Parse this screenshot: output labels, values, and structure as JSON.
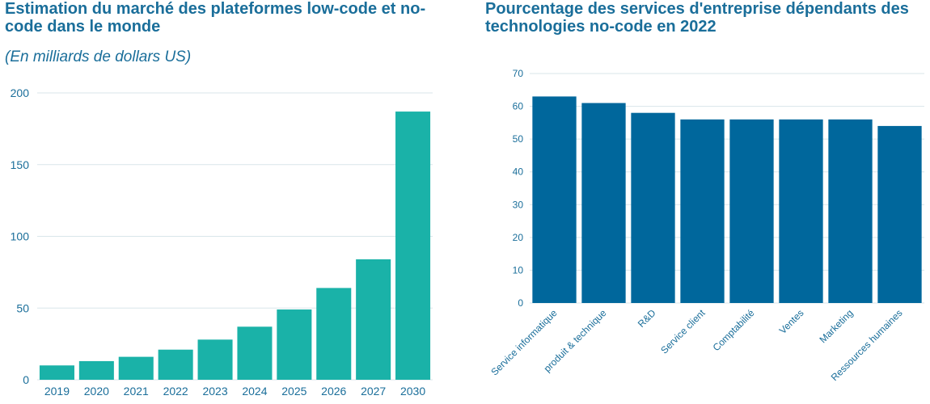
{
  "chart_data": [
    {
      "type": "bar",
      "title": "Estimation du marché des plateformes low-code et no-code dans le monde",
      "subtitle": "(En milliards de dollars US)",
      "xlabel": "",
      "ylabel": "",
      "ylim": [
        0,
        200
      ],
      "yticks": [
        "0",
        "50",
        "100",
        "150",
        "200"
      ],
      "grid": true,
      "categories": [
        "2019",
        "2020",
        "2021",
        "2022",
        "2023",
        "2024",
        "2025",
        "2026",
        "2027",
        "2030"
      ],
      "values": [
        10,
        13,
        16,
        21,
        28,
        37,
        49,
        64,
        84,
        187
      ],
      "color": "#1ab2a8"
    },
    {
      "type": "bar",
      "title": "Pourcentage des services d'entreprise dépendants des technologies no-code en 2022",
      "xlabel": "",
      "ylabel": "",
      "ylim": [
        0,
        70
      ],
      "yticks": [
        "0",
        "10",
        "20",
        "30",
        "40",
        "50",
        "60",
        "70"
      ],
      "grid": true,
      "categories": [
        "Service informatique",
        "produit & technique",
        "R&D",
        "Service client",
        "Comptabilité",
        "Ventes",
        "Marketing",
        "Ressources humaines"
      ],
      "values": [
        63,
        61,
        58,
        56,
        56,
        56,
        56,
        54
      ],
      "color": "#00679c"
    }
  ]
}
